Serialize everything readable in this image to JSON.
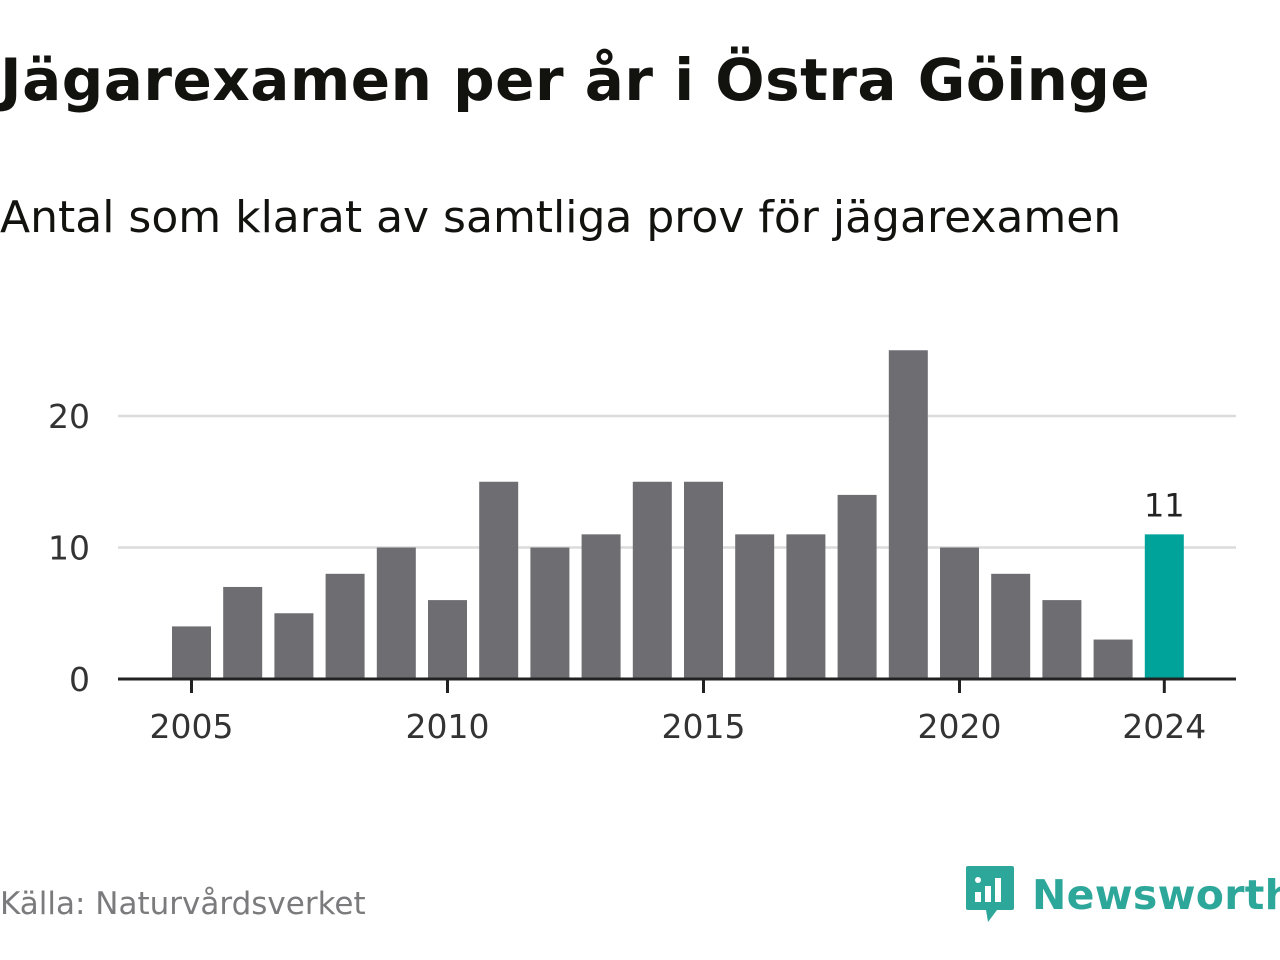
{
  "title": "Jägarexamen per år i Östra Göinge",
  "subtitle": "Antal som klarat av samtliga prov för jägarexamen",
  "source": "Källa: Naturvårdsverket",
  "brand": "Newsworthy",
  "colors": {
    "bar": "#6e6d72",
    "highlight": "#00a39a",
    "grid": "#dcdcdc",
    "axis": "#222222",
    "brand": "#2ea79b"
  },
  "chart_data": {
    "type": "bar",
    "title": "Jägarexamen per år i Östra Göinge",
    "subtitle": "Antal som klarat av samtliga prov för jägarexamen",
    "categories": [
      2005,
      2006,
      2007,
      2008,
      2009,
      2010,
      2011,
      2012,
      2013,
      2014,
      2015,
      2016,
      2017,
      2018,
      2019,
      2020,
      2021,
      2022,
      2023,
      2024
    ],
    "values": [
      4,
      7,
      5,
      8,
      10,
      6,
      15,
      10,
      11,
      15,
      15,
      11,
      11,
      14,
      25,
      10,
      8,
      6,
      3,
      11
    ],
    "highlight": {
      "category": 2024,
      "label": "11"
    },
    "x_tick_labels": [
      "2005",
      "2010",
      "2015",
      "2020",
      "2024"
    ],
    "y_ticks": [
      0,
      10,
      20
    ],
    "ylim": [
      0,
      26
    ],
    "grid": true,
    "xlabel": "",
    "ylabel": ""
  }
}
